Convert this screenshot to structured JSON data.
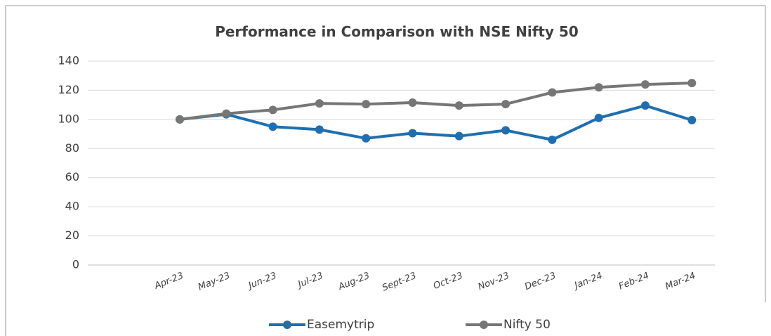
{
  "chart_data": {
    "type": "line",
    "title": "Performance in Comparison with NSE Nifty 50",
    "categories": [
      "Apr-23",
      "May-23",
      "Jun-23",
      "Jul-23",
      "Aug-23",
      "Sept-23",
      "Oct-23",
      "Nov-23",
      "Dec-23",
      "Jan-24",
      "Feb-24",
      "Mar-24"
    ],
    "series": [
      {
        "name": "Easemytrip",
        "color": "#1f6fb0",
        "values": [
          100,
          103.5,
          95,
          93,
          87,
          90.5,
          88.5,
          92.5,
          86,
          101,
          109.5,
          99.5
        ]
      },
      {
        "name": "Nifty 50",
        "color": "#767676",
        "values": [
          100,
          104,
          106.5,
          111,
          110.5,
          111.5,
          109.5,
          110.5,
          118.5,
          122,
          124,
          125
        ]
      }
    ],
    "ylim": [
      0,
      140
    ],
    "yticks": [
      0,
      20,
      40,
      60,
      80,
      100,
      120,
      140
    ],
    "grid": true,
    "legend": "bottom"
  }
}
